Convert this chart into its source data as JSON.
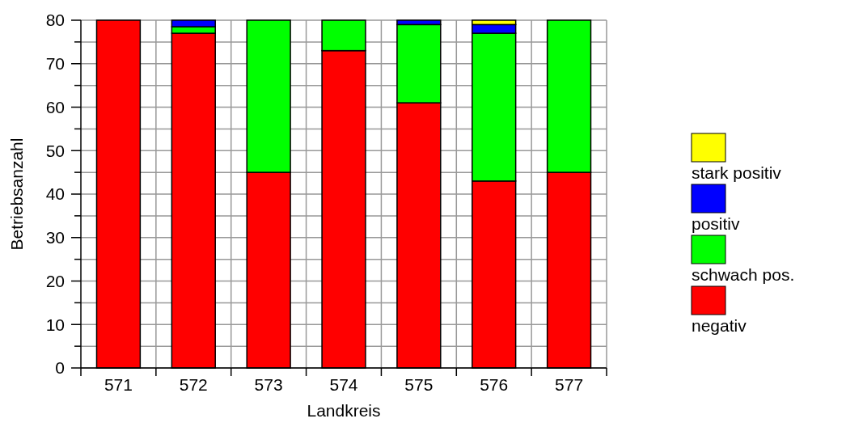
{
  "chart_data": {
    "type": "bar",
    "stacked": true,
    "xlabel": "Landkreis",
    "ylabel": "Betriebsanzahl",
    "categories": [
      "571",
      "572",
      "573",
      "574",
      "575",
      "576",
      "577"
    ],
    "series": [
      {
        "name": "negativ",
        "color": "#ff0000",
        "values": [
          80,
          77,
          45,
          73,
          61,
          43,
          45
        ]
      },
      {
        "name": "schwach pos.",
        "color": "#00ff00",
        "values": [
          0,
          1.5,
          35,
          7,
          18,
          34,
          35
        ]
      },
      {
        "name": "positiv",
        "color": "#0000ff",
        "values": [
          0,
          1.5,
          0,
          0,
          1,
          2,
          0
        ]
      },
      {
        "name": "stark positiv",
        "color": "#ffff00",
        "values": [
          0,
          0,
          0,
          0,
          0,
          1,
          0
        ]
      }
    ],
    "ylim": [
      0,
      80
    ],
    "yticks": [
      0,
      {
        "value": 5,
        "label": null
      },
      10,
      {
        "value": 15,
        "label": null
      },
      20,
      {
        "value": 25,
        "label": null
      },
      30,
      {
        "value": 35,
        "label": null
      },
      40,
      {
        "value": 45,
        "label": null
      },
      50,
      {
        "value": 55,
        "label": null
      },
      60,
      {
        "value": 65,
        "label": null
      },
      70,
      {
        "value": 75,
        "label": null
      },
      80
    ],
    "grid": true,
    "legend": "right"
  }
}
